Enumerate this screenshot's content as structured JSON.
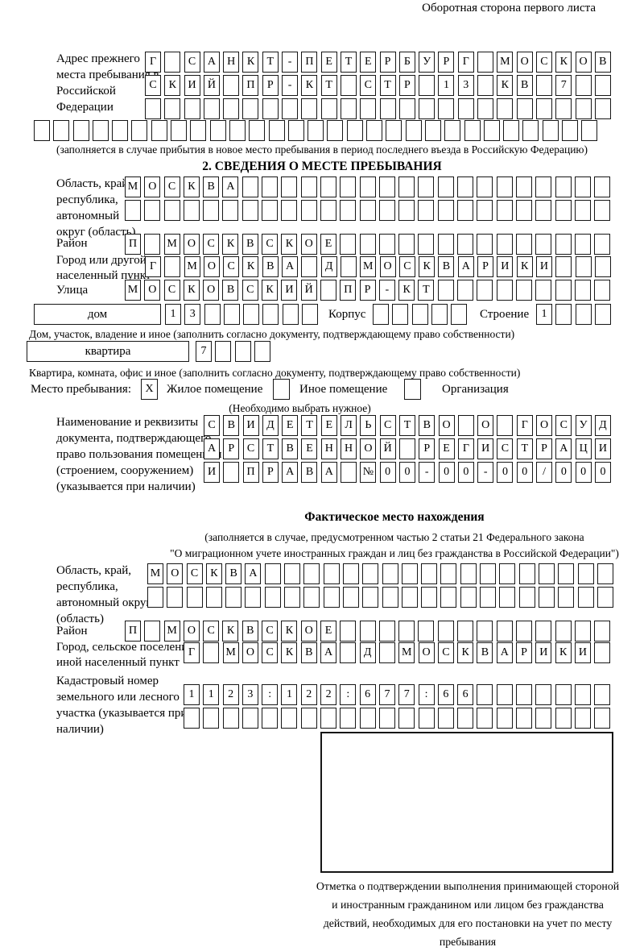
{
  "page": {
    "flip_note": "Оборотная сторона первого листа"
  },
  "prev_address": {
    "label": "Адрес прежнего места пребывания в Российской Федерации",
    "row1": {
      "cells": "Г САНКТ-ПЕТЕРБУРГ МОСКОВ",
      "count": 24
    },
    "row2": {
      "cells": "СКИЙ ПР-КТ СТР 13 КВ 7",
      "count": 24
    },
    "row3": {
      "cells": "",
      "count": 24
    },
    "row4": {
      "cells": "",
      "count": 29
    },
    "note": "(заполняется в случае прибытия в новое место пребывания в период последнего въезда в Российскую Федерацию)"
  },
  "stay_section": {
    "heading": "2. СВЕДЕНИЯ О МЕСТЕ ПРЕБЫВАНИЯ",
    "region": {
      "label": "Область, край, республика, автономный округ (область)",
      "row1": {
        "cells": "МОСКВА",
        "count": 25
      },
      "row2": {
        "cells": "",
        "count": 25
      }
    },
    "district": {
      "label": "Район",
      "row": {
        "cells": "П МОСКВСКОЕ",
        "count": 25
      }
    },
    "city": {
      "label": "Город или другой населенный пункт",
      "row": {
        "cells": "Г МОСКВА Д МОСКВАРИКИ",
        "count": 24
      }
    },
    "street": {
      "label": "Улица",
      "row": {
        "cells": "МОСКОВСКИЙ ПР-КТ",
        "count": 25
      }
    },
    "house": {
      "box_label": "дом",
      "number_row": {
        "cells": "13",
        "count": 8
      },
      "korpus_label": "Корпус",
      "korpus_row": {
        "cells": "",
        "count": 5
      },
      "stroenie_label": "Строение",
      "stroenie_row": {
        "cells": "1",
        "count": 4
      },
      "note": "Дом, участок, владение и иное (заполнить согласно документу, подтверждающему право собственности)"
    },
    "apartment": {
      "box_label": "квартира",
      "number_row": {
        "cells": "7",
        "count": 4
      },
      "note": "Квартира, комната, офис и иное (заполнить согласно документу, подтверждающему право собственности)"
    },
    "premises": {
      "label": "Место пребывания:",
      "options": [
        {
          "label": "Жилое помещение",
          "mark": "X"
        },
        {
          "label": "Иное помещение",
          "mark": ""
        },
        {
          "label": "Организация",
          "mark": ""
        }
      ],
      "note": "(Необходимо выбрать нужное)"
    },
    "document": {
      "label": "Наименование и реквизиты документа, подтверждающего право пользования помещением (строением, сооружением) (указывается при наличии)",
      "row1": {
        "cells": "СВИДЕТЕЛЬСТВО О ГОСУД",
        "count": 21
      },
      "row2": {
        "cells": "АРСТВЕННОЙ РЕГИСТРАЦИ",
        "count": 21
      },
      "row3": {
        "cells": "И ПРАВА №00-00-00/000",
        "count": 21
      }
    }
  },
  "actual_location": {
    "heading": "Фактическое место нахождения",
    "note_line1": "(заполняется в случае, предусмотренном частью 2 статьи 21 Федерального закона",
    "note_line2": "\"О миграционном учете иностранных граждан и лиц без гражданства в Российской Федерации\")",
    "region": {
      "label": "Область, край, республика, автономный округ (область)",
      "row1": {
        "cells": "МОСКВА",
        "count": 24
      },
      "row2": {
        "cells": "",
        "count": 24
      }
    },
    "district": {
      "label": "Район",
      "row": {
        "cells": "П МОСКВСКОЕ",
        "count": 25
      }
    },
    "city": {
      "label": "Город, сельское поселение, иной населенный пункт",
      "row": {
        "cells": "Г МОСКВА Д МОСКВАРИКИ",
        "count": 22
      }
    },
    "cadastral": {
      "label": "Кадастровый номер земельного или лесного участка (указывается при наличии)",
      "row1": {
        "cells": "1123:122:677:66",
        "count": 22
      },
      "row2": {
        "cells": "",
        "count": 22
      }
    }
  },
  "confirmation": {
    "caption": "Отметка о подтверждении выполнения принимающей стороной и иностранным гражданином или лицом без гражданства действий, необходимых для его постановки на учет по месту пребывания"
  }
}
